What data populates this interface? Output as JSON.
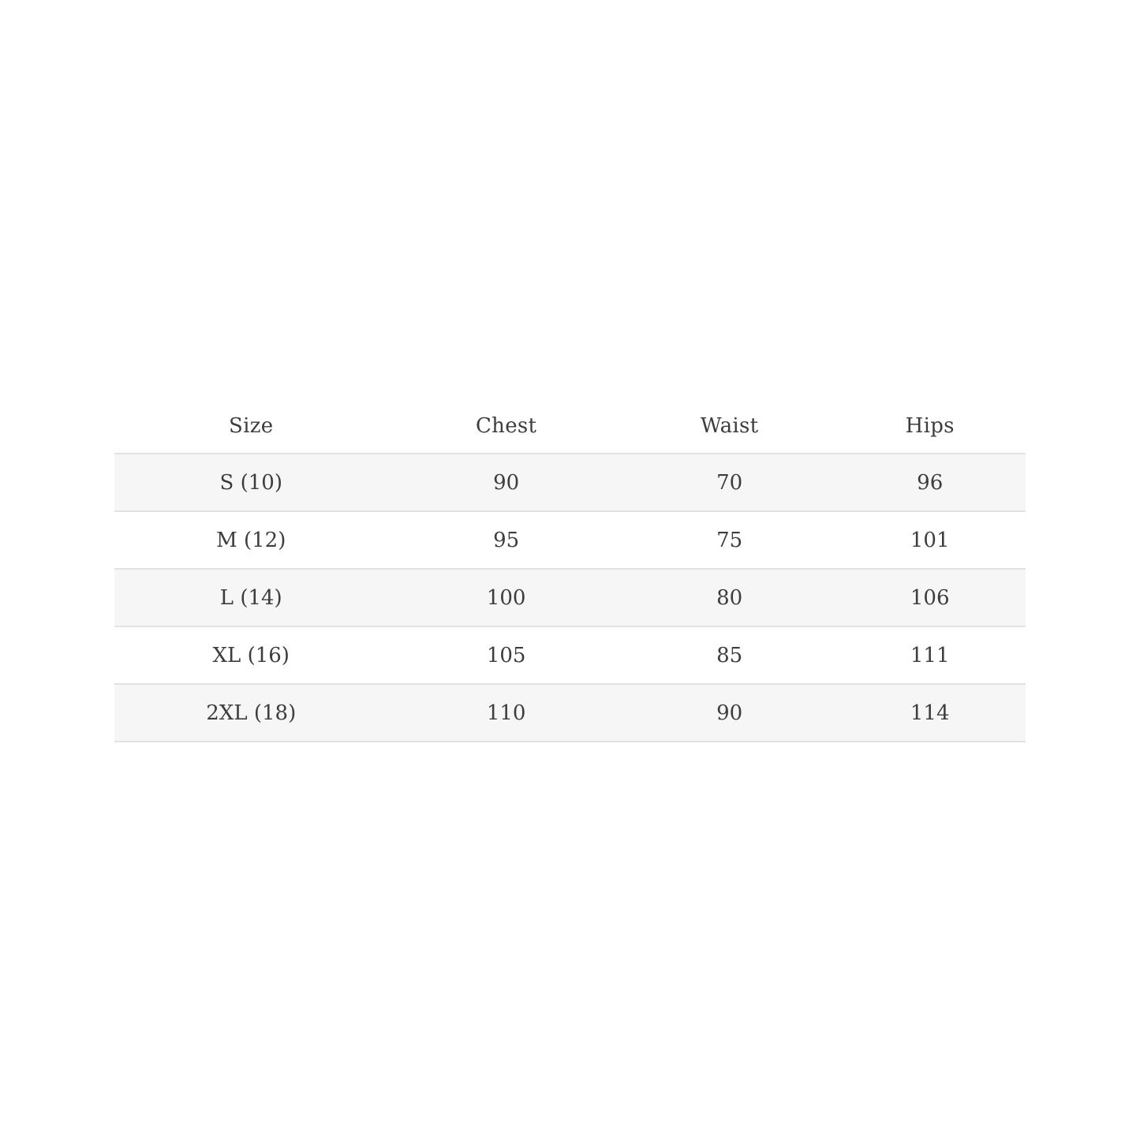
{
  "size_chart": {
    "columns": [
      {
        "key": "size",
        "label": "Size"
      },
      {
        "key": "chest",
        "label": "Chest"
      },
      {
        "key": "waist",
        "label": "Waist"
      },
      {
        "key": "hips",
        "label": "Hips"
      }
    ],
    "rows": [
      {
        "size": "S (10)",
        "chest": "90",
        "waist": "70",
        "hips": "96"
      },
      {
        "size": "M (12)",
        "chest": "95",
        "waist": "75",
        "hips": "101"
      },
      {
        "size": "L (14)",
        "chest": "100",
        "waist": "80",
        "hips": "106"
      },
      {
        "size": "XL (16)",
        "chest": "105",
        "waist": "85",
        "hips": "111"
      },
      {
        "size": "2XL (18)",
        "chest": "110",
        "waist": "90",
        "hips": "114"
      }
    ],
    "colors": {
      "text": "#3d3d3d",
      "row_stripe": "#f6f6f6",
      "border": "#e2e2e2",
      "background": "#ffffff"
    }
  }
}
